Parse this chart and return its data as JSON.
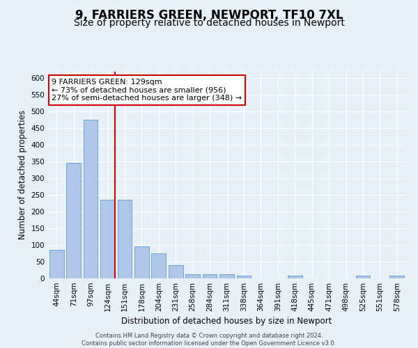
{
  "title": "9, FARRIERS GREEN, NEWPORT, TF10 7XL",
  "subtitle": "Size of property relative to detached houses in Newport",
  "xlabel": "Distribution of detached houses by size in Newport",
  "ylabel": "Number of detached properties",
  "categories": [
    "44sqm",
    "71sqm",
    "97sqm",
    "124sqm",
    "151sqm",
    "178sqm",
    "204sqm",
    "231sqm",
    "258sqm",
    "284sqm",
    "311sqm",
    "338sqm",
    "364sqm",
    "391sqm",
    "418sqm",
    "445sqm",
    "471sqm",
    "498sqm",
    "525sqm",
    "551sqm",
    "578sqm"
  ],
  "values": [
    85,
    345,
    475,
    235,
    235,
    95,
    75,
    40,
    13,
    13,
    13,
    8,
    0,
    0,
    8,
    0,
    0,
    0,
    8,
    0,
    8
  ],
  "bar_color": "#aec6e8",
  "bar_edge_color": "#5b9bd5",
  "vline_bar_index": 3,
  "vline_color": "#cc0000",
  "annotation_text": "9 FARRIERS GREEN: 129sqm\n← 73% of detached houses are smaller (956)\n27% of semi-detached houses are larger (348) →",
  "annotation_box_facecolor": "#ffffff",
  "annotation_box_edgecolor": "#cc0000",
  "ylim": [
    0,
    620
  ],
  "yticks": [
    0,
    50,
    100,
    150,
    200,
    250,
    300,
    350,
    400,
    450,
    500,
    550,
    600
  ],
  "footer_text": "Contains HM Land Registry data © Crown copyright and database right 2024.\nContains public sector information licensed under the Open Government Licence v3.0.",
  "bg_color": "#e8f0f8",
  "plot_bg_color": "#e8f0f8",
  "grid_color": "#ffffff",
  "title_fontsize": 12,
  "subtitle_fontsize": 10,
  "tick_fontsize": 7.5,
  "ylabel_fontsize": 8.5,
  "xlabel_fontsize": 8.5,
  "annotation_fontsize": 8,
  "footer_fontsize": 6
}
